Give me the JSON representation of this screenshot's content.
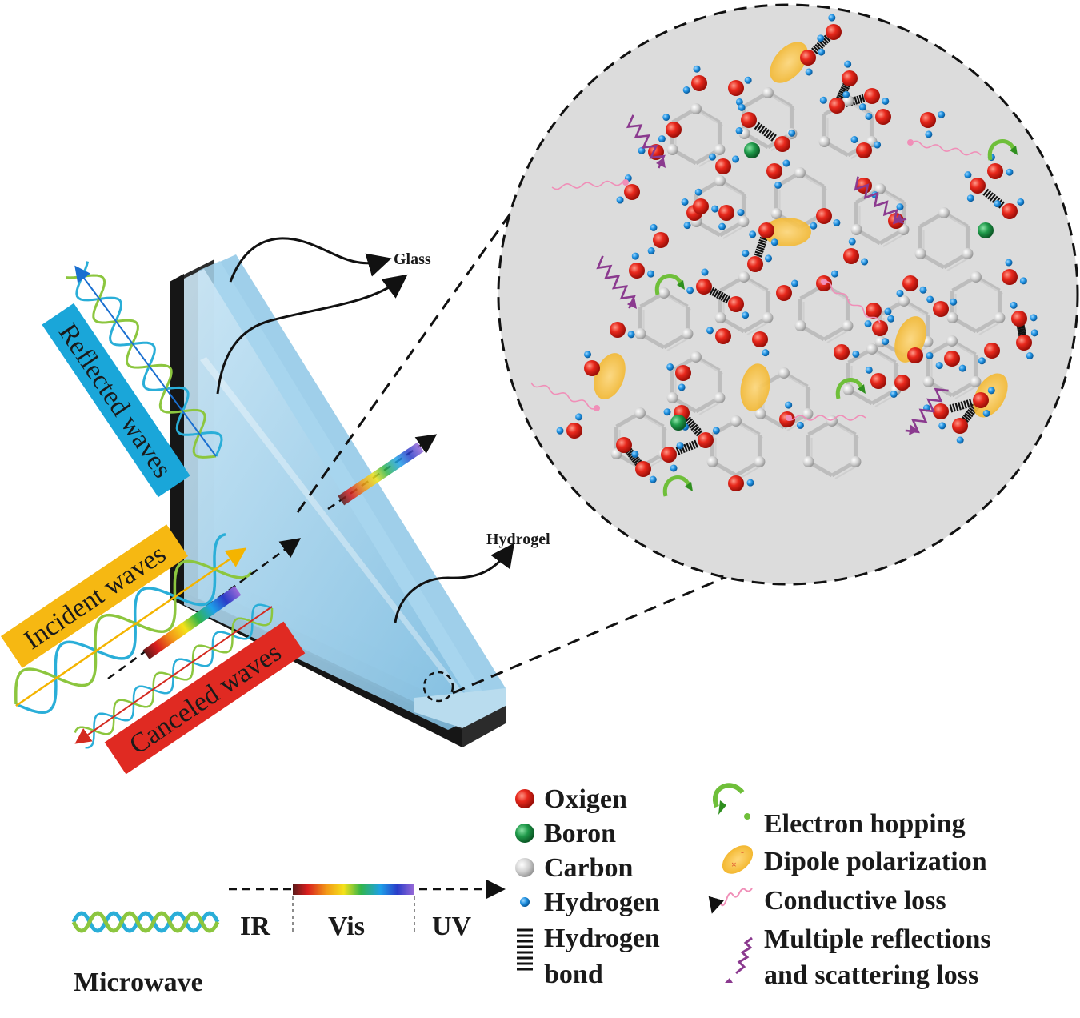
{
  "labels": {
    "glass": "Glass",
    "hydrogel": "Hydrogel",
    "reflected": "Reflected waves",
    "incident": "Incident waves",
    "canceled": "Canceled waves"
  },
  "spectrum": {
    "microwave": "Microwave",
    "ir": "IR",
    "vis": "Vis",
    "uv": "UV"
  },
  "legend_atoms": [
    {
      "key": "oxygen",
      "label": "Oxigen",
      "color": "#e0251b"
    },
    {
      "key": "boron",
      "label": "Boron",
      "color": "#1f9a4a"
    },
    {
      "key": "carbon",
      "label": "Carbon",
      "color": "#c9c9c9"
    },
    {
      "key": "hydrogen",
      "label": "Hydrogen",
      "color": "#1e90e0"
    }
  ],
  "legend_bond": {
    "line1": "Hydrogen",
    "line2": "bond"
  },
  "legend_mech": [
    {
      "key": "electron",
      "label": "Electron hopping"
    },
    {
      "key": "dipole",
      "label": "Dipole polarization"
    },
    {
      "key": "conductive",
      "label": "Conductive loss"
    },
    {
      "key": "multi",
      "line1": "Multiple reflections",
      "line2": "and scattering loss"
    }
  ],
  "colors": {
    "reflected_box": "#1aa6d9",
    "incident_box": "#f6b812",
    "canceled_box": "#e02a22",
    "frame": "#2b2b2b",
    "glass": "#9fd0ea",
    "circle_bg": "#dcdcdc"
  }
}
